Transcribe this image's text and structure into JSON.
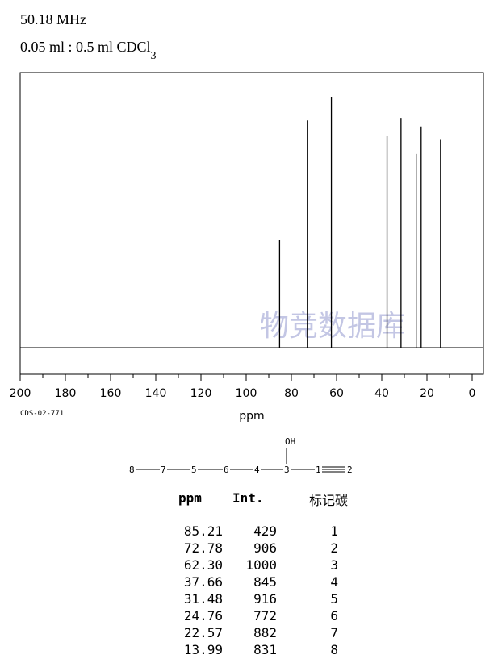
{
  "header": {
    "frequency": "50.18 MHz",
    "solvent": "0.05 ml : 0.5 ml CDCl",
    "solvent_sub": "3"
  },
  "code": "CDS-02-771",
  "watermark": "物竞数据库",
  "structure": {
    "labels": [
      "8",
      "7",
      "5",
      "6",
      "4",
      "3",
      "1",
      "2"
    ],
    "oh": "OH"
  },
  "table": {
    "headers": [
      "ppm",
      "Int.",
      "标记碳"
    ],
    "rows": [
      [
        "85.21",
        "429",
        "1"
      ],
      [
        "72.78",
        "906",
        "2"
      ],
      [
        "62.30",
        "1000",
        "3"
      ],
      [
        "37.66",
        "845",
        "4"
      ],
      [
        "31.48",
        "916",
        "5"
      ],
      [
        "24.76",
        "772",
        "6"
      ],
      [
        "22.57",
        "882",
        "7"
      ],
      [
        "13.99",
        "831",
        "8"
      ]
    ]
  },
  "chart_data": {
    "type": "line",
    "xlabel": "ppm",
    "ylabel": "",
    "xlim": [
      200,
      -5
    ],
    "x_ticks": [
      "200",
      "180",
      "160",
      "140",
      "120",
      "100",
      "80",
      "60",
      "40",
      "20",
      "0"
    ],
    "peaks": [
      {
        "ppm": 85.21,
        "intensity": 429
      },
      {
        "ppm": 72.78,
        "intensity": 906
      },
      {
        "ppm": 62.3,
        "intensity": 1000
      },
      {
        "ppm": 37.66,
        "intensity": 845
      },
      {
        "ppm": 31.48,
        "intensity": 916
      },
      {
        "ppm": 24.76,
        "intensity": 772
      },
      {
        "ppm": 22.57,
        "intensity": 882
      },
      {
        "ppm": 13.99,
        "intensity": 831
      }
    ]
  }
}
